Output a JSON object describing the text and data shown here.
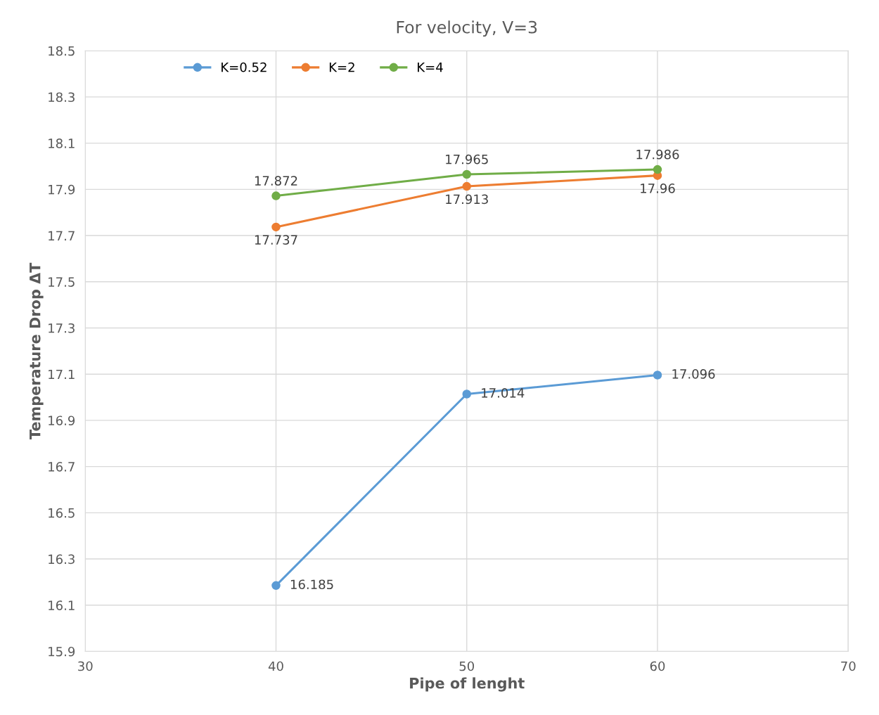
{
  "chart_data": {
    "type": "line",
    "title": "For velocity, V=3",
    "xlabel": "Pipe of lenght",
    "ylabel": "Temperature Drop ΔT",
    "x": [
      40,
      50,
      60
    ],
    "series": [
      {
        "name": "K=0.52",
        "color": "#5b9bd5",
        "values": [
          16.185,
          17.014,
          17.096
        ]
      },
      {
        "name": "K=2",
        "color": "#ed7d31",
        "values": [
          17.737,
          17.913,
          17.96
        ]
      },
      {
        "name": "K=4",
        "color": "#70ad47",
        "values": [
          17.872,
          17.965,
          17.986
        ]
      }
    ],
    "xlim": [
      30,
      70
    ],
    "xticks": [
      30,
      40,
      50,
      60,
      70
    ],
    "ylim": [
      15.9,
      18.5
    ],
    "yticks": [
      {
        "value": 15.9,
        "label": "15.9"
      },
      {
        "value": 16.1,
        "label": "16.1"
      },
      {
        "value": 16.3,
        "label": "16.3"
      },
      {
        "value": 16.5,
        "label": "16.5"
      },
      {
        "value": 16.7,
        "label": "16.7"
      },
      {
        "value": 16.9,
        "label": "16.9"
      },
      {
        "value": 17.1,
        "label": "17.1"
      },
      {
        "value": 17.3,
        "label": "17.3"
      },
      {
        "value": 17.5,
        "label": "17.5"
      },
      {
        "value": 17.7,
        "label": "17.7"
      },
      {
        "value": 17.9,
        "label": "17.9"
      },
      {
        "value": 18.1,
        "label": "18.1"
      },
      {
        "value": 18.3,
        "label": "18.3"
      },
      {
        "value": 18.5,
        "label": "18.5"
      }
    ],
    "grid": true,
    "legend": "top",
    "marker": "circle",
    "line_style": "solid",
    "data_labels": true
  }
}
